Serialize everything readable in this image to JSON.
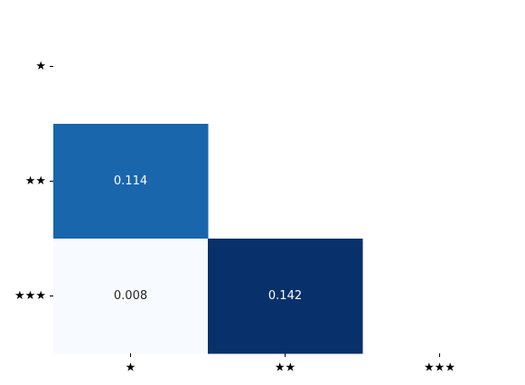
{
  "chart_data": {
    "type": "heatmap",
    "title": "",
    "xlabel": "",
    "ylabel": "",
    "x_categories": [
      "★",
      "★★",
      "★★★"
    ],
    "y_categories": [
      "★",
      "★★",
      "★★★"
    ],
    "cells": [
      {
        "row": 1,
        "col": 0,
        "value": 0.114,
        "label": "0.114"
      },
      {
        "row": 2,
        "col": 0,
        "value": 0.008,
        "label": "0.008"
      },
      {
        "row": 2,
        "col": 1,
        "value": 0.142,
        "label": "0.142"
      }
    ],
    "mask": "lower-triangle-shown",
    "colormap": "Blues",
    "color_low": "#f7fbff",
    "color_high": "#08306b",
    "colorbar": false,
    "grid": false
  }
}
